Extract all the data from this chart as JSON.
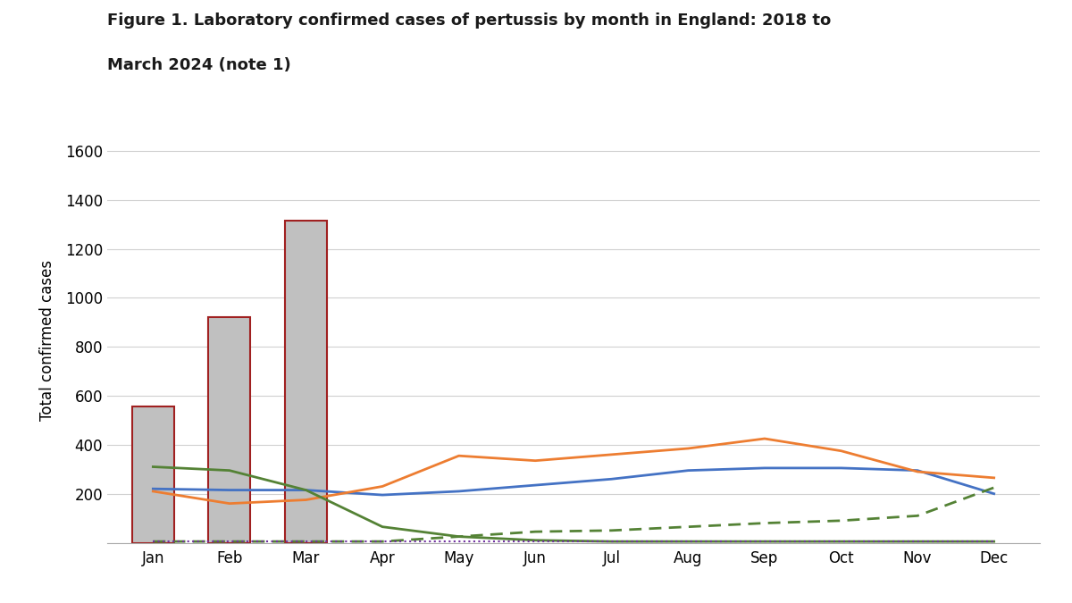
{
  "title_line1": "Figure 1. Laboratory confirmed cases of pertussis by month in England: 2018 to",
  "title_line2": "March 2024 (note 1)",
  "ylabel": "Total confirmed cases",
  "months": [
    "Jan",
    "Feb",
    "Mar",
    "Apr",
    "May",
    "Jun",
    "Jul",
    "Aug",
    "Sep",
    "Oct",
    "Nov",
    "Dec"
  ],
  "bar_values": [
    555,
    920,
    1315,
    0,
    0,
    0,
    0,
    0,
    0,
    0,
    0,
    0
  ],
  "bar_color": "#c0c0c0",
  "bar_edge_color": "#a02020",
  "bar_highlight_months": [
    0,
    1,
    2
  ],
  "blue_line": [
    220,
    215,
    215,
    195,
    210,
    235,
    260,
    295,
    305,
    305,
    295,
    200
  ],
  "orange_line": [
    210,
    160,
    175,
    230,
    355,
    335,
    360,
    385,
    425,
    375,
    290,
    265
  ],
  "green_solid_line": [
    310,
    295,
    215,
    65,
    25,
    10,
    5,
    5,
    5,
    5,
    5,
    5
  ],
  "green_dashed_line": [
    5,
    5,
    5,
    5,
    25,
    45,
    50,
    65,
    80,
    90,
    110,
    225
  ],
  "purple_dotted_line": [
    5,
    5,
    5,
    5,
    5,
    5,
    5,
    5,
    5,
    5,
    5,
    5
  ],
  "blue_line_color": "#4472c4",
  "orange_line_color": "#ed7d31",
  "green_line_color": "#548235",
  "purple_line_color": "#7030a0",
  "background_color": "#ffffff",
  "ylim": [
    0,
    1650
  ],
  "yticks": [
    0,
    200,
    400,
    600,
    800,
    1000,
    1200,
    1400,
    1600
  ]
}
